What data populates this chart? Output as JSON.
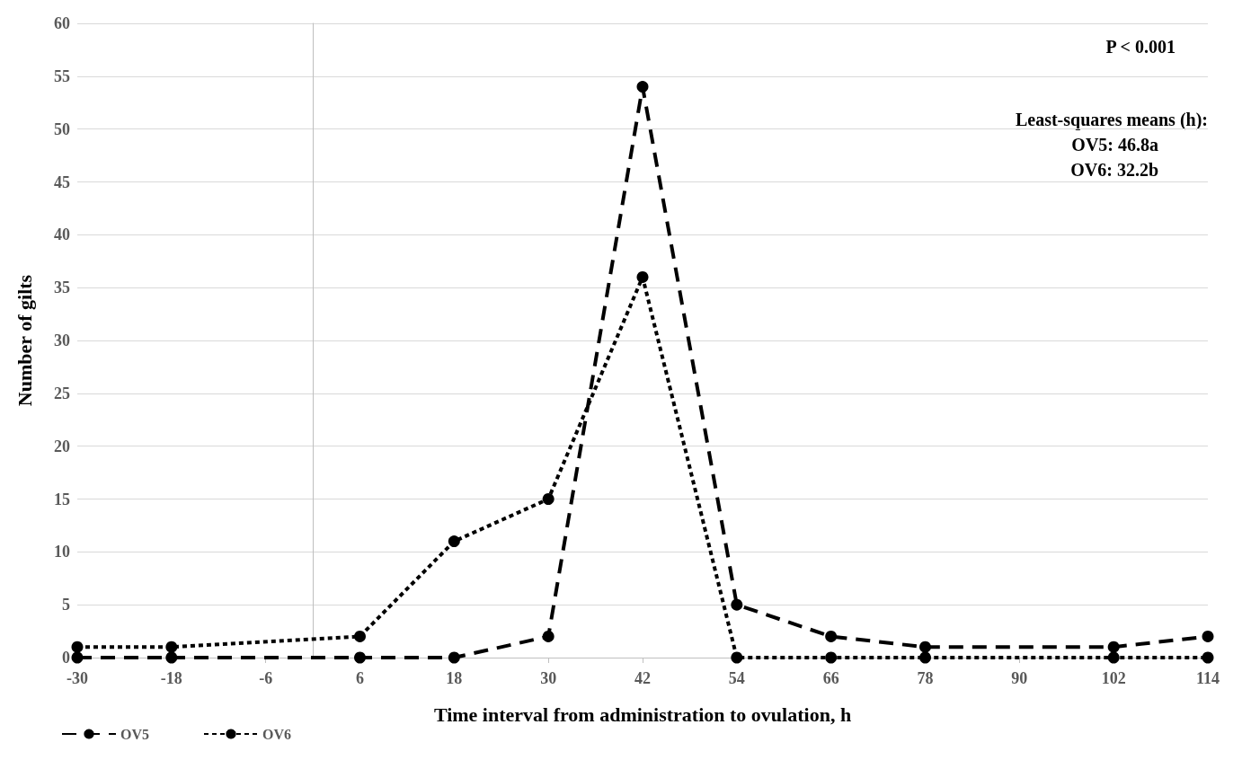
{
  "chart_data": {
    "type": "line",
    "xlabel": "Time interval from administration to ovulation, h",
    "ylabel": "Number of gilts",
    "xlim": [
      -30,
      114
    ],
    "xticks": [
      -30,
      -18,
      -6,
      6,
      18,
      30,
      42,
      54,
      66,
      78,
      90,
      102,
      114
    ],
    "ylim": [
      0,
      60
    ],
    "yticks": [
      0,
      5,
      10,
      15,
      20,
      25,
      30,
      35,
      40,
      45,
      50,
      55,
      60
    ],
    "grid": "y",
    "legend": "bottom left",
    "marker": "circle",
    "annotations": [
      "P < 0.001",
      "Least-squares means (h):",
      "OV5: 46.8a",
      "OV6: 32.2b"
    ],
    "series": [
      {
        "name": "OV5",
        "color": "#000000",
        "line_style": "dashed",
        "x": [
          -30,
          -18,
          6,
          18,
          30,
          42,
          54,
          66,
          78,
          102,
          114
        ],
        "values": [
          0,
          0,
          0,
          0,
          2,
          54,
          5,
          2,
          1,
          1,
          2
        ]
      },
      {
        "name": "OV6",
        "color": "#000000",
        "line_style": "dotted",
        "x": [
          -30,
          -18,
          6,
          18,
          30,
          42,
          54,
          66,
          78,
          102,
          114
        ],
        "values": [
          1,
          1,
          2,
          11,
          15,
          36,
          0,
          0,
          0,
          0,
          0
        ]
      }
    ]
  }
}
